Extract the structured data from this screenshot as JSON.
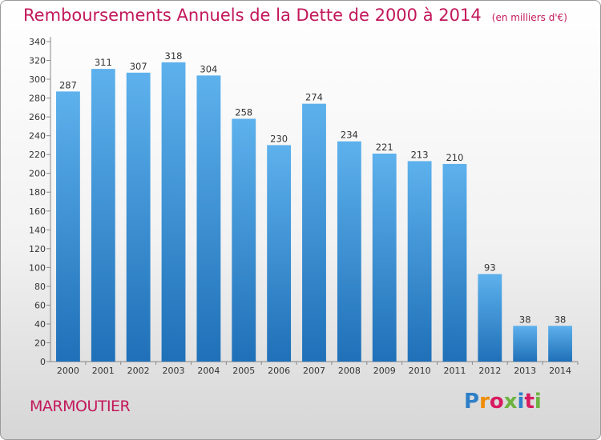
{
  "title": {
    "main": "Remboursements Annuels de la Dette de 2000 à 2014",
    "unit": "(en milliers d'€)"
  },
  "commune": "MARMOUTIER",
  "logo": {
    "text": "Proxiti",
    "letter_colors": [
      "#2e7fc8",
      "#f08c00",
      "#d81b60",
      "#6cb33f",
      "#2e7fc8",
      "#d81b60",
      "#6cb33f"
    ]
  },
  "colors": {
    "title": "#c2185b",
    "bar_top": "#5db1ec",
    "bar_bottom": "#1f70b8"
  },
  "chart_data": {
    "type": "bar",
    "title": "Remboursements Annuels de la Dette de 2000 à 2014",
    "xlabel": "",
    "ylabel": "",
    "categories": [
      "2000",
      "2001",
      "2002",
      "2003",
      "2004",
      "2005",
      "2006",
      "2007",
      "2008",
      "2009",
      "2010",
      "2011",
      "2012",
      "2013",
      "2014"
    ],
    "values": [
      287,
      311,
      307,
      318,
      304,
      258,
      230,
      274,
      234,
      221,
      213,
      210,
      93,
      38,
      38
    ],
    "ylim": [
      0,
      340
    ],
    "ytick_step": 20,
    "grid": false,
    "legend": "none"
  }
}
